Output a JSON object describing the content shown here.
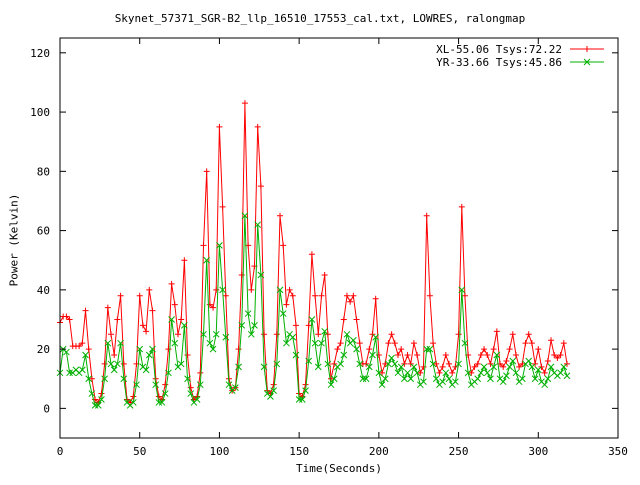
{
  "chart_data": {
    "type": "line",
    "title": "Skynet_57371_SGR-B2_llp_16510_17553_cal.txt, LOWRES, ralongmap",
    "xlabel": "Time(Seconds)",
    "ylabel": "Power (Kelvin)",
    "xlim": [
      0,
      350
    ],
    "ylim": [
      -10,
      125
    ],
    "xticks": [
      0,
      50,
      100,
      150,
      200,
      250,
      300,
      350
    ],
    "yticks": [
      0,
      20,
      40,
      60,
      80,
      100,
      120
    ],
    "grid": false,
    "legend_position": "top-right",
    "series": [
      {
        "name": "XL-55.06 Tsys:72.22",
        "color": "#ff0000",
        "marker": "plus",
        "x": [
          0,
          2,
          4,
          6,
          8,
          10,
          12,
          14,
          16,
          18,
          20,
          22,
          24,
          26,
          28,
          30,
          32,
          34,
          36,
          38,
          40,
          42,
          44,
          46,
          48,
          50,
          52,
          54,
          56,
          58,
          60,
          62,
          64,
          66,
          68,
          70,
          72,
          74,
          76,
          78,
          80,
          82,
          84,
          86,
          88,
          90,
          92,
          94,
          96,
          98,
          100,
          102,
          104,
          106,
          108,
          110,
          112,
          114,
          116,
          118,
          120,
          122,
          124,
          126,
          128,
          130,
          132,
          134,
          136,
          138,
          140,
          142,
          144,
          146,
          148,
          150,
          152,
          154,
          156,
          158,
          160,
          162,
          164,
          166,
          168,
          170,
          172,
          174,
          176,
          178,
          180,
          182,
          184,
          186,
          188,
          190,
          192,
          194,
          196,
          198,
          200,
          202,
          204,
          206,
          208,
          210,
          212,
          214,
          216,
          218,
          220,
          222,
          224,
          226,
          228,
          230,
          232,
          234,
          236,
          238,
          240,
          242,
          244,
          246,
          248,
          250,
          252,
          254,
          256,
          258,
          260,
          262,
          264,
          266,
          268,
          270,
          272,
          274,
          276,
          278,
          280,
          282,
          284,
          286,
          288,
          290,
          292,
          294,
          296,
          298,
          300,
          302,
          304,
          306,
          308,
          310,
          312,
          314,
          316,
          318
        ],
        "values": [
          29,
          31,
          31,
          30,
          21,
          21,
          21,
          22,
          33,
          20,
          10,
          3,
          2,
          5,
          15,
          34,
          25,
          18,
          30,
          38,
          15,
          3,
          2,
          4,
          15,
          38,
          28,
          26,
          40,
          33,
          10,
          4,
          3,
          8,
          20,
          42,
          35,
          25,
          30,
          50,
          18,
          7,
          3,
          4,
          12,
          55,
          80,
          35,
          34,
          40,
          95,
          68,
          38,
          10,
          6,
          7,
          20,
          45,
          103,
          55,
          40,
          48,
          95,
          75,
          25,
          6,
          5,
          8,
          25,
          65,
          55,
          35,
          40,
          38,
          28,
          5,
          4,
          8,
          28,
          52,
          38,
          25,
          38,
          45,
          25,
          10,
          15,
          20,
          22,
          30,
          38,
          36,
          38,
          30,
          22,
          15,
          15,
          20,
          25,
          37,
          18,
          12,
          15,
          22,
          25,
          22,
          18,
          20,
          15,
          18,
          15,
          22,
          18,
          12,
          14,
          65,
          38,
          22,
          15,
          12,
          14,
          18,
          15,
          12,
          14,
          25,
          68,
          38,
          18,
          12,
          14,
          15,
          18,
          20,
          18,
          15,
          20,
          26,
          15,
          14,
          16,
          20,
          25,
          18,
          14,
          15,
          22,
          25,
          22,
          15,
          20,
          14,
          12,
          16,
          23,
          18,
          17,
          18,
          22,
          15
        ]
      },
      {
        "name": "YR-33.66 Tsys:45.86",
        "color": "#00b000",
        "marker": "cross",
        "x": [
          0,
          2,
          4,
          6,
          8,
          10,
          12,
          14,
          16,
          18,
          20,
          22,
          24,
          26,
          28,
          30,
          32,
          34,
          36,
          38,
          40,
          42,
          44,
          46,
          48,
          50,
          52,
          54,
          56,
          58,
          60,
          62,
          64,
          66,
          68,
          70,
          72,
          74,
          76,
          78,
          80,
          82,
          84,
          86,
          88,
          90,
          92,
          94,
          96,
          98,
          100,
          102,
          104,
          106,
          108,
          110,
          112,
          114,
          116,
          118,
          120,
          122,
          124,
          126,
          128,
          130,
          132,
          134,
          136,
          138,
          140,
          142,
          144,
          146,
          148,
          150,
          152,
          154,
          156,
          158,
          160,
          162,
          164,
          166,
          168,
          170,
          172,
          174,
          176,
          178,
          180,
          182,
          184,
          186,
          188,
          190,
          192,
          194,
          196,
          198,
          200,
          202,
          204,
          206,
          208,
          210,
          212,
          214,
          216,
          218,
          220,
          222,
          224,
          226,
          228,
          230,
          232,
          234,
          236,
          238,
          240,
          242,
          244,
          246,
          248,
          250,
          252,
          254,
          256,
          258,
          260,
          262,
          264,
          266,
          268,
          270,
          272,
          274,
          276,
          278,
          280,
          282,
          284,
          286,
          288,
          290,
          292,
          294,
          296,
          298,
          300,
          302,
          304,
          306,
          308,
          310,
          312,
          314,
          316,
          318
        ],
        "values": [
          12,
          20,
          19,
          12,
          12,
          13,
          12,
          13,
          18,
          10,
          5,
          1,
          1,
          3,
          10,
          22,
          15,
          13,
          15,
          22,
          10,
          2,
          1,
          2,
          8,
          20,
          14,
          13,
          18,
          20,
          8,
          2,
          2,
          5,
          12,
          30,
          22,
          14,
          15,
          28,
          10,
          5,
          2,
          3,
          8,
          25,
          50,
          22,
          20,
          25,
          55,
          40,
          24,
          8,
          6,
          7,
          14,
          28,
          65,
          32,
          25,
          28,
          62,
          45,
          14,
          5,
          4,
          6,
          15,
          40,
          32,
          22,
          25,
          24,
          18,
          3,
          3,
          6,
          16,
          30,
          22,
          14,
          22,
          26,
          15,
          8,
          10,
          14,
          15,
          18,
          25,
          22,
          23,
          20,
          15,
          10,
          10,
          14,
          18,
          24,
          12,
          8,
          10,
          15,
          17,
          15,
          12,
          14,
          10,
          12,
          10,
          14,
          12,
          8,
          9,
          20,
          20,
          15,
          10,
          8,
          9,
          12,
          10,
          8,
          9,
          15,
          40,
          22,
          12,
          8,
          9,
          10,
          12,
          14,
          12,
          10,
          14,
          18,
          10,
          9,
          11,
          14,
          16,
          12,
          9,
          10,
          15,
          16,
          14,
          10,
          13,
          9,
          8,
          10,
          14,
          12,
          11,
          12,
          14,
          11
        ]
      }
    ]
  }
}
